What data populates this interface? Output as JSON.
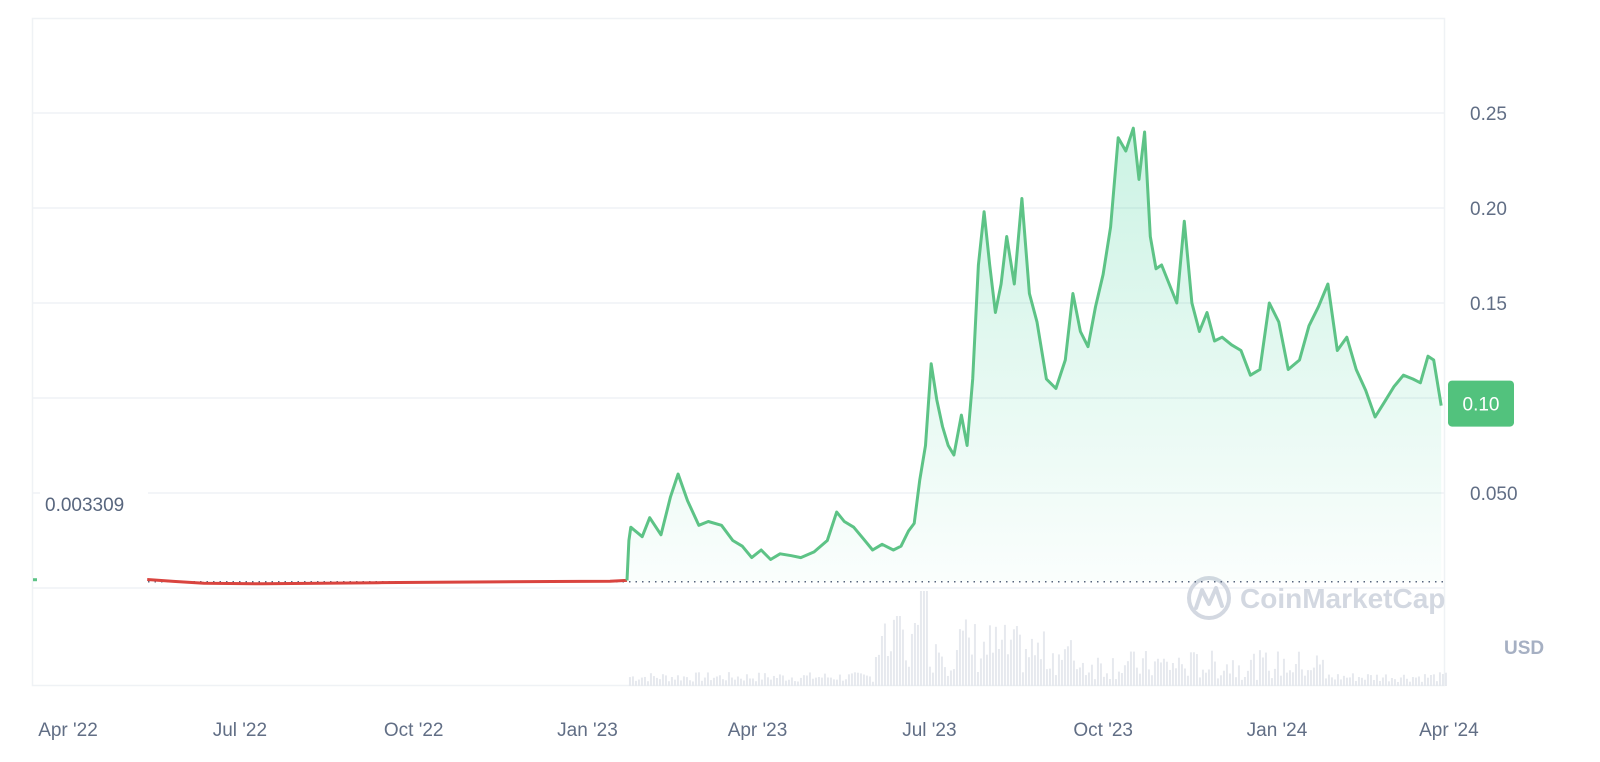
{
  "chart_data": {
    "type": "area",
    "currency_label": "USD",
    "watermark": "CoinMarketCap",
    "current_price_label": "0.10",
    "baseline_label": "0.003309",
    "x_tick_labels": [
      "Apr '22",
      "Jul '22",
      "Oct '22",
      "Jan '23",
      "Apr '23",
      "Jul '23",
      "Oct '23",
      "Jan '24",
      "Apr '24"
    ],
    "y_tick_labels": [
      "0.050",
      "0.10",
      "0.15",
      "0.20",
      "0.25"
    ],
    "ylim": [
      0,
      0.3
    ],
    "xlim": [
      "2022-04-01",
      "2024-04-18"
    ],
    "baseline": 0.003309,
    "grid": "horizontal",
    "colors": {
      "up": "#16c784",
      "line_up": "#5dc386",
      "down": "#d9443f",
      "grid": "#eff2f5",
      "text": "#616e85",
      "badge": "#52c27d",
      "volume": "#e6e9ee"
    },
    "series": [
      {
        "x": [
          "2022-06-01",
          "2022-06-15",
          "2022-07-01",
          "2022-08-01",
          "2022-09-01",
          "2022-10-01",
          "2022-11-01",
          "2022-12-01",
          "2023-01-01",
          "2023-02-01",
          "2023-02-10",
          "2023-02-11",
          "2023-02-12",
          "2023-02-18",
          "2023-02-22",
          "2023-02-28",
          "2023-03-05",
          "2023-03-09",
          "2023-03-14",
          "2023-03-20",
          "2023-03-25",
          "2023-04-01",
          "2023-04-07",
          "2023-04-12",
          "2023-04-17",
          "2023-04-22",
          "2023-04-27",
          "2023-05-02",
          "2023-05-08",
          "2023-05-13",
          "2023-05-20",
          "2023-05-27",
          "2023-06-01",
          "2023-06-05",
          "2023-06-10",
          "2023-06-15",
          "2023-06-20",
          "2023-06-25",
          "2023-07-01",
          "2023-07-05",
          "2023-07-09",
          "2023-07-12",
          "2023-07-15",
          "2023-07-18",
          "2023-07-21",
          "2023-07-24",
          "2023-07-27",
          "2023-07-30",
          "2023-08-02",
          "2023-08-06",
          "2023-08-09",
          "2023-08-12",
          "2023-08-15",
          "2023-08-18",
          "2023-08-21",
          "2023-08-24",
          "2023-08-27",
          "2023-08-30",
          "2023-09-03",
          "2023-09-07",
          "2023-09-11",
          "2023-09-15",
          "2023-09-20",
          "2023-09-25",
          "2023-09-30",
          "2023-10-04",
          "2023-10-08",
          "2023-10-12",
          "2023-10-16",
          "2023-10-20",
          "2023-10-24",
          "2023-10-28",
          "2023-11-01",
          "2023-11-05",
          "2023-11-08",
          "2023-11-11",
          "2023-11-14",
          "2023-11-17",
          "2023-11-20",
          "2023-11-24",
          "2023-11-28",
          "2023-12-02",
          "2023-12-06",
          "2023-12-10",
          "2023-12-14",
          "2023-12-18",
          "2023-12-22",
          "2023-12-27",
          "2024-01-01",
          "2024-01-06",
          "2024-01-11",
          "2024-01-16",
          "2024-01-21",
          "2024-01-26",
          "2024-02-01",
          "2024-02-06",
          "2024-02-11",
          "2024-02-16",
          "2024-02-21",
          "2024-02-26",
          "2024-03-02",
          "2024-03-07",
          "2024-03-12",
          "2024-03-17",
          "2024-03-22",
          "2024-03-27",
          "2024-04-01",
          "2024-04-05",
          "2024-04-09",
          "2024-04-12",
          "2024-04-16"
        ],
        "y": [
          0.0045,
          0.0035,
          0.0025,
          0.0022,
          0.0025,
          0.0028,
          0.003,
          0.0032,
          0.0034,
          0.0036,
          0.004,
          0.025,
          0.032,
          0.027,
          0.037,
          0.028,
          0.048,
          0.06,
          0.046,
          0.033,
          0.035,
          0.033,
          0.025,
          0.022,
          0.016,
          0.02,
          0.015,
          0.018,
          0.017,
          0.016,
          0.019,
          0.025,
          0.04,
          0.035,
          0.032,
          0.026,
          0.02,
          0.023,
          0.02,
          0.022,
          0.03,
          0.034,
          0.057,
          0.075,
          0.118,
          0.099,
          0.085,
          0.075,
          0.07,
          0.091,
          0.075,
          0.11,
          0.17,
          0.198,
          0.17,
          0.145,
          0.16,
          0.185,
          0.16,
          0.205,
          0.155,
          0.14,
          0.11,
          0.105,
          0.12,
          0.155,
          0.135,
          0.127,
          0.148,
          0.165,
          0.19,
          0.237,
          0.23,
          0.242,
          0.215,
          0.24,
          0.185,
          0.168,
          0.17,
          0.16,
          0.15,
          0.193,
          0.15,
          0.135,
          0.145,
          0.13,
          0.132,
          0.128,
          0.125,
          0.112,
          0.115,
          0.15,
          0.14,
          0.115,
          0.12,
          0.138,
          0.148,
          0.16,
          0.125,
          0.132,
          0.115,
          0.104,
          0.09,
          0.098,
          0.106,
          0.112,
          0.11,
          0.108,
          0.122,
          0.12,
          0.096
        ]
      }
    ]
  }
}
